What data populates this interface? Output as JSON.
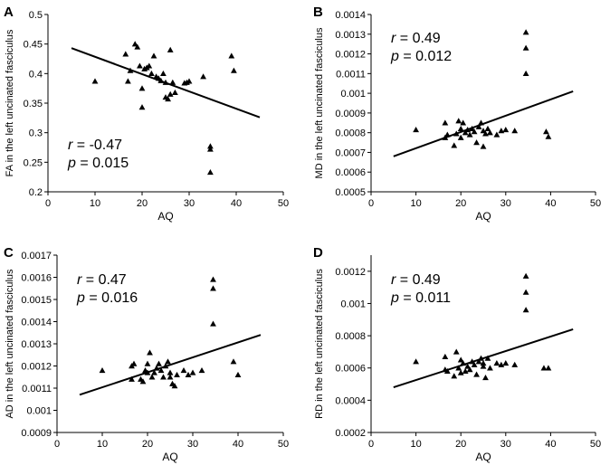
{
  "chart_data": [
    {
      "panel": "A",
      "type": "scatter",
      "xlabel": "AQ",
      "ylabel": "FA in the left uncinated fasciculus",
      "xlim": [
        0,
        50
      ],
      "ylim": [
        0.2,
        0.5
      ],
      "xticks": [
        "0",
        "10",
        "20",
        "30",
        "40",
        "50"
      ],
      "yticks": [
        "0.2",
        "0.25",
        "0.3",
        "0.35",
        "0.4",
        "0.45",
        "0.5"
      ],
      "stats": {
        "r_label": "r",
        "r_value": " = -0.47",
        "p_label": "p",
        "p_value": " = 0.015"
      },
      "trend": {
        "x": [
          5,
          45
        ],
        "y": [
          0.443,
          0.326
        ]
      },
      "points": [
        [
          10,
          0.387
        ],
        [
          16.5,
          0.433
        ],
        [
          17,
          0.387
        ],
        [
          17.5,
          0.405
        ],
        [
          18.5,
          0.45
        ],
        [
          19,
          0.445
        ],
        [
          19.5,
          0.413
        ],
        [
          20,
          0.375
        ],
        [
          20,
          0.343
        ],
        [
          20.5,
          0.408
        ],
        [
          21,
          0.41
        ],
        [
          21.5,
          0.413
        ],
        [
          22,
          0.4
        ],
        [
          22.5,
          0.43
        ],
        [
          23,
          0.395
        ],
        [
          23.5,
          0.392
        ],
        [
          24,
          0.388
        ],
        [
          24.5,
          0.4
        ],
        [
          25,
          0.36
        ],
        [
          25,
          0.385
        ],
        [
          25.5,
          0.357
        ],
        [
          26,
          0.44
        ],
        [
          26,
          0.365
        ],
        [
          26.5,
          0.385
        ],
        [
          27,
          0.368
        ],
        [
          29,
          0.384
        ],
        [
          29.5,
          0.385
        ],
        [
          30,
          0.387
        ],
        [
          33,
          0.395
        ],
        [
          34.5,
          0.272
        ],
        [
          34.5,
          0.277
        ],
        [
          34.5,
          0.233
        ],
        [
          39,
          0.43
        ],
        [
          39.5,
          0.405
        ]
      ]
    },
    {
      "panel": "B",
      "type": "scatter",
      "xlabel": "AQ",
      "ylabel": "MD in the left uncinated fasciculus",
      "xlim": [
        0,
        50
      ],
      "ylim": [
        0.0005,
        0.0014
      ],
      "xticks": [
        "0",
        "10",
        "20",
        "30",
        "40",
        "50"
      ],
      "yticks": [
        "0.0005",
        "0.0006",
        "0.0007",
        "0.0008",
        "0.0009",
        "0.001",
        "0.0011",
        "0.0012",
        "0.0013",
        "0.0014"
      ],
      "stats": {
        "r_label": "r",
        "r_value": " = 0.49",
        "p_label": "p",
        "p_value": " = 0.012"
      },
      "trend": {
        "x": [
          5,
          45
        ],
        "y": [
          0.00068,
          0.00101
        ]
      },
      "points": [
        [
          10,
          0.000815
        ],
        [
          16.5,
          0.00085
        ],
        [
          16.5,
          0.000775
        ],
        [
          17,
          0.00079
        ],
        [
          18.5,
          0.000735
        ],
        [
          19,
          0.000795
        ],
        [
          19.5,
          0.00086
        ],
        [
          20,
          0.00082
        ],
        [
          20,
          0.000775
        ],
        [
          20.5,
          0.00085
        ],
        [
          21,
          0.0008
        ],
        [
          21.5,
          0.000815
        ],
        [
          22,
          0.00079
        ],
        [
          22.5,
          0.00082
        ],
        [
          23,
          0.000805
        ],
        [
          23.5,
          0.00075
        ],
        [
          24,
          0.00083
        ],
        [
          24.5,
          0.00085
        ],
        [
          25,
          0.00081
        ],
        [
          25,
          0.00073
        ],
        [
          25.5,
          0.000795
        ],
        [
          26,
          0.00082
        ],
        [
          26.5,
          0.0008
        ],
        [
          28,
          0.00079
        ],
        [
          29,
          0.00081
        ],
        [
          30,
          0.000815
        ],
        [
          32,
          0.00081
        ],
        [
          34.5,
          0.00131
        ],
        [
          34.5,
          0.00123
        ],
        [
          34.5,
          0.0011
        ],
        [
          39,
          0.000805
        ],
        [
          39.5,
          0.00078
        ]
      ]
    },
    {
      "panel": "C",
      "type": "scatter",
      "xlabel": "AQ",
      "ylabel": "AD in the left uncinated fasciculus",
      "xlim": [
        0,
        50
      ],
      "ylim": [
        0.0009,
        0.0017
      ],
      "xticks": [
        "0",
        "10",
        "20",
        "30",
        "40",
        "50"
      ],
      "yticks": [
        "0.0009",
        "0.001",
        "0.0011",
        "0.0012",
        "0.0013",
        "0.0014",
        "0.0015",
        "0.0016",
        "0.0017"
      ],
      "stats": {
        "r_label": "r",
        "r_value": " = 0.47",
        "p_label": "p",
        "p_value": " = 0.016"
      },
      "trend": {
        "x": [
          5,
          45
        ],
        "y": [
          0.00107,
          0.00134
        ]
      },
      "points": [
        [
          10,
          0.00118
        ],
        [
          16.5,
          0.0012
        ],
        [
          16.5,
          0.00114
        ],
        [
          17,
          0.00121
        ],
        [
          18.5,
          0.00114
        ],
        [
          19,
          0.00113
        ],
        [
          19.5,
          0.00118
        ],
        [
          20,
          0.00117
        ],
        [
          20,
          0.00121
        ],
        [
          20.5,
          0.00126
        ],
        [
          21,
          0.00115
        ],
        [
          21.5,
          0.00117
        ],
        [
          22,
          0.00119
        ],
        [
          22.5,
          0.00121
        ],
        [
          23,
          0.00118
        ],
        [
          23.5,
          0.00115
        ],
        [
          24,
          0.0012
        ],
        [
          24.5,
          0.00122
        ],
        [
          25,
          0.00115
        ],
        [
          25,
          0.00117
        ],
        [
          25.5,
          0.00112
        ],
        [
          26,
          0.00111
        ],
        [
          26.5,
          0.00116
        ],
        [
          28,
          0.00118
        ],
        [
          29,
          0.00116
        ],
        [
          30,
          0.00117
        ],
        [
          32,
          0.00118
        ],
        [
          34.5,
          0.00159
        ],
        [
          34.5,
          0.00155
        ],
        [
          34.5,
          0.00139
        ],
        [
          39,
          0.00122
        ],
        [
          40,
          0.00116
        ]
      ]
    },
    {
      "panel": "D",
      "type": "scatter",
      "xlabel": "AQ",
      "ylabel": "RD in the left uncinated fasciculus",
      "xlim": [
        0,
        50
      ],
      "ylim": [
        0.0002,
        0.0013
      ],
      "xticks": [
        "0",
        "10",
        "20",
        "30",
        "40",
        "50"
      ],
      "yticks": [
        "0.0002",
        "0.0004",
        "0.0006",
        "0.0008",
        "0.001",
        "0.0012"
      ],
      "stats": {
        "r_label": "r",
        "r_value": " = 0.49",
        "p_label": "p",
        "p_value": " = 0.011"
      },
      "trend": {
        "x": [
          5,
          45
        ],
        "y": [
          0.00048,
          0.00084
        ]
      },
      "points": [
        [
          10,
          0.00064
        ],
        [
          16.5,
          0.00067
        ],
        [
          16.5,
          0.00059
        ],
        [
          17,
          0.00058
        ],
        [
          18.5,
          0.00055
        ],
        [
          19,
          0.0007
        ],
        [
          19.5,
          0.0006
        ],
        [
          20,
          0.00065
        ],
        [
          20,
          0.00057
        ],
        [
          20.5,
          0.00063
        ],
        [
          21,
          0.00058
        ],
        [
          21.5,
          0.00061
        ],
        [
          22,
          0.00059
        ],
        [
          22.5,
          0.00064
        ],
        [
          23,
          0.00062
        ],
        [
          23.5,
          0.00056
        ],
        [
          24,
          0.00064
        ],
        [
          24.5,
          0.00066
        ],
        [
          25,
          0.00061
        ],
        [
          25,
          0.00063
        ],
        [
          25.5,
          0.00054
        ],
        [
          26,
          0.00066
        ],
        [
          26.5,
          0.0006
        ],
        [
          28,
          0.00063
        ],
        [
          29,
          0.00062
        ],
        [
          30,
          0.00063
        ],
        [
          32,
          0.00062
        ],
        [
          34.5,
          0.00117
        ],
        [
          34.5,
          0.00107
        ],
        [
          34.5,
          0.00096
        ],
        [
          38.5,
          0.0006
        ],
        [
          39.5,
          0.0006
        ]
      ]
    }
  ]
}
